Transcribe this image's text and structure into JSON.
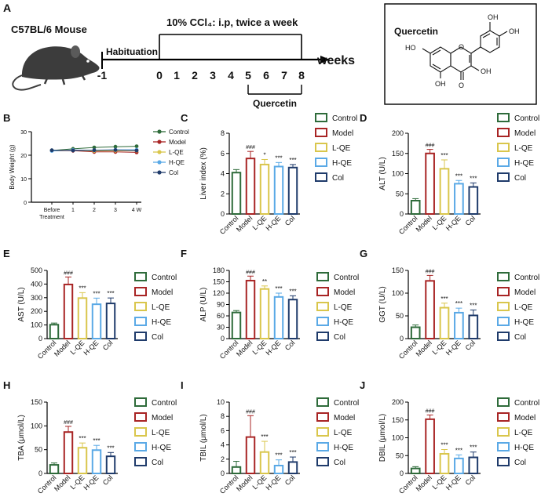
{
  "figure": {
    "colors": {
      "Control": "#2e6b3a",
      "Model": "#a82424",
      "L-QE": "#d9c64c",
      "H-QE": "#5aa9e6",
      "Col": "#1f3b6b"
    },
    "groups": [
      "Control",
      "Model",
      "L-QE",
      "H-QE",
      "Col"
    ]
  },
  "panel_a": {
    "label": "A",
    "mouse_label": "C57BL/6 Mouse",
    "treatment_text": "10% CCl₄: i.p, twice a week",
    "habituation_label": "Habituation",
    "weeks_label": "weeks",
    "ticks": [
      "-1",
      "0",
      "1",
      "2",
      "3",
      "4",
      "5",
      "6",
      "7",
      "8"
    ],
    "quercetin_label": "Quercetin",
    "mouse_icon": "mouse-illustration",
    "structure_title": "Quercetin",
    "structure_atoms": [
      "OH",
      "OH",
      "HO",
      "OH",
      "OH",
      "O",
      "O"
    ]
  },
  "chart_data": [
    {
      "panel": "B",
      "type": "line",
      "title": "",
      "xlabel": "",
      "ylabel": "Body Weight (g)",
      "categories": [
        "Before Treatment",
        "1",
        "2",
        "3",
        "4 W"
      ],
      "ylim": [
        0,
        30
      ],
      "yticks": [
        "0",
        "10",
        "20",
        "30"
      ],
      "series": [
        {
          "name": "Control",
          "values": [
            22.0,
            22.7,
            23.3,
            23.6,
            23.8
          ],
          "errors": [
            0.9,
            0.8,
            0.7,
            0.7,
            0.6
          ]
        },
        {
          "name": "Model",
          "values": [
            21.9,
            21.9,
            21.4,
            21.4,
            21.2
          ],
          "errors": [
            0.8,
            0.9,
            0.8,
            0.8,
            0.8
          ]
        },
        {
          "name": "L-QE",
          "values": [
            22.0,
            22.1,
            21.8,
            21.9,
            21.9
          ],
          "errors": [
            0.7,
            0.7,
            0.7,
            0.6,
            0.6
          ]
        },
        {
          "name": "H-QE",
          "values": [
            21.8,
            22.2,
            22.1,
            22.3,
            22.3
          ],
          "errors": [
            0.8,
            0.7,
            0.7,
            0.6,
            0.6
          ]
        },
        {
          "name": "Col",
          "values": [
            22.1,
            22.0,
            22.1,
            22.2,
            22.0
          ],
          "errors": [
            0.7,
            0.7,
            0.6,
            0.6,
            0.6
          ]
        }
      ]
    },
    {
      "panel": "C",
      "type": "bar",
      "ylabel": "Liver index  (%)",
      "ylim": [
        0,
        8
      ],
      "yticks": [
        "0",
        "2",
        "4",
        "6",
        "8"
      ],
      "categories": [
        "Control",
        "Model",
        "L-QE",
        "H-QE",
        "Col"
      ],
      "values": [
        4.1,
        5.5,
        4.9,
        4.7,
        4.6
      ],
      "errors": [
        0.3,
        0.7,
        0.5,
        0.4,
        0.3
      ],
      "annotations": [
        "",
        "###",
        "*",
        "***",
        "***"
      ]
    },
    {
      "panel": "D",
      "type": "bar",
      "ylabel": "ALT (U/L)",
      "ylim": [
        0,
        200
      ],
      "yticks": [
        "0",
        "50",
        "100",
        "150",
        "200"
      ],
      "categories": [
        "Control",
        "Model",
        "L-QE",
        "H-QE",
        "Col"
      ],
      "values": [
        33,
        150,
        112,
        75,
        67
      ],
      "errors": [
        5,
        10,
        22,
        8,
        10
      ],
      "annotations": [
        "",
        "###",
        "***",
        "***",
        "***"
      ]
    },
    {
      "panel": "E",
      "type": "bar",
      "ylabel": "AST (U/L)",
      "ylim": [
        0,
        500
      ],
      "yticks": [
        "0",
        "100",
        "200",
        "300",
        "400",
        "500"
      ],
      "categories": [
        "Control",
        "Model",
        "L-QE",
        "H-QE",
        "Col"
      ],
      "values": [
        102,
        397,
        297,
        252,
        258
      ],
      "errors": [
        12,
        55,
        40,
        45,
        40
      ],
      "annotations": [
        "",
        "###",
        "***",
        "***",
        "***"
      ]
    },
    {
      "panel": "F",
      "type": "bar",
      "ylabel": "ALP (U/L)",
      "ylim": [
        0,
        180
      ],
      "yticks": [
        "0",
        "30",
        "60",
        "90",
        "120",
        "150",
        "180"
      ],
      "categories": [
        "Control",
        "Model",
        "L-QE",
        "H-QE",
        "Col"
      ],
      "values": [
        69,
        153,
        131,
        110,
        103
      ],
      "errors": [
        5,
        12,
        8,
        10,
        10
      ],
      "annotations": [
        "",
        "###",
        "**",
        "***",
        "***"
      ]
    },
    {
      "panel": "G",
      "type": "bar",
      "ylabel": "GGT (U/L)",
      "ylim": [
        0,
        150
      ],
      "yticks": [
        "0",
        "50",
        "100",
        "150"
      ],
      "categories": [
        "Control",
        "Model",
        "L-QE",
        "H-QE",
        "Col"
      ],
      "values": [
        25,
        127,
        68,
        57,
        51
      ],
      "errors": [
        5,
        12,
        10,
        10,
        12
      ],
      "annotations": [
        "",
        "###",
        "***",
        "***",
        "***"
      ]
    },
    {
      "panel": "H",
      "type": "bar",
      "ylabel": "TBA (μmol/L)",
      "ylim": [
        0,
        150
      ],
      "yticks": [
        "0",
        "50",
        "100",
        "150"
      ],
      "categories": [
        "Control",
        "Model",
        "L-QE",
        "H-QE",
        "Col"
      ],
      "values": [
        18,
        87,
        54,
        49,
        36
      ],
      "errors": [
        4,
        12,
        10,
        10,
        8
      ],
      "annotations": [
        "",
        "###",
        "***",
        "***",
        "***"
      ]
    },
    {
      "panel": "I",
      "type": "bar",
      "ylabel": "TBIL (μmol/L)",
      "ylim": [
        0,
        10
      ],
      "yticks": [
        "0",
        "2",
        "4",
        "6",
        "8",
        "10"
      ],
      "categories": [
        "Control",
        "Model",
        "L-QE",
        "H-QE",
        "Col"
      ],
      "values": [
        0.9,
        5.1,
        3.0,
        1.1,
        1.6
      ],
      "errors": [
        0.8,
        3.0,
        1.5,
        0.8,
        0.7
      ],
      "annotations": [
        "",
        "###",
        "***",
        "***",
        "***"
      ]
    },
    {
      "panel": "J",
      "type": "bar",
      "ylabel": "DBIL (μmol/L)",
      "ylim": [
        0,
        200
      ],
      "yticks": [
        "0",
        "50",
        "100",
        "150",
        "200"
      ],
      "categories": [
        "Control",
        "Model",
        "L-QE",
        "H-QE",
        "Col"
      ],
      "values": [
        14,
        152,
        55,
        42,
        45
      ],
      "errors": [
        5,
        12,
        12,
        10,
        15
      ],
      "annotations": [
        "",
        "###",
        "***",
        "***",
        "***"
      ]
    }
  ]
}
